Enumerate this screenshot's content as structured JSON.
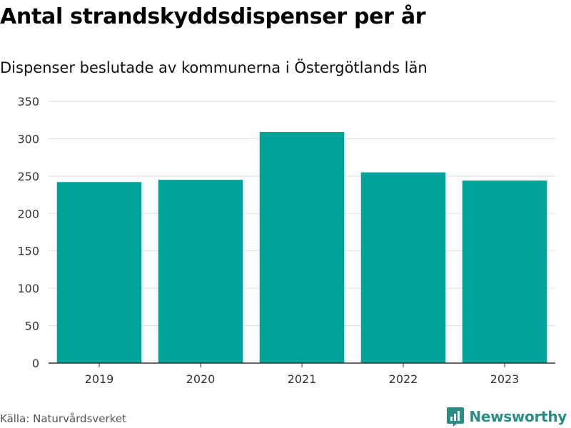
{
  "header": {
    "title": "Antal strandskyddsdispenser per år",
    "subtitle": "Dispenser beslutade av kommunerna i Östergötlands län"
  },
  "footer": {
    "source": "Källa: Naturvårdsverket",
    "brand": "Newsworthy"
  },
  "colors": {
    "bar": "#00a39a",
    "grid": "#dddddd",
    "axis": "#333333",
    "brand": "#2a8c85"
  },
  "chart_data": {
    "type": "bar",
    "title": "Antal strandskyddsdispenser per år",
    "subtitle": "Dispenser beslutade av kommunerna i Östergötlands län",
    "categories": [
      "2019",
      "2020",
      "2021",
      "2022",
      "2023"
    ],
    "values": [
      242,
      245,
      309,
      255,
      244
    ],
    "xlabel": "",
    "ylabel": "",
    "ylim": [
      0,
      350
    ],
    "yticks": [
      0,
      50,
      100,
      150,
      200,
      250,
      300,
      350
    ],
    "grid": true,
    "legend": "none"
  }
}
